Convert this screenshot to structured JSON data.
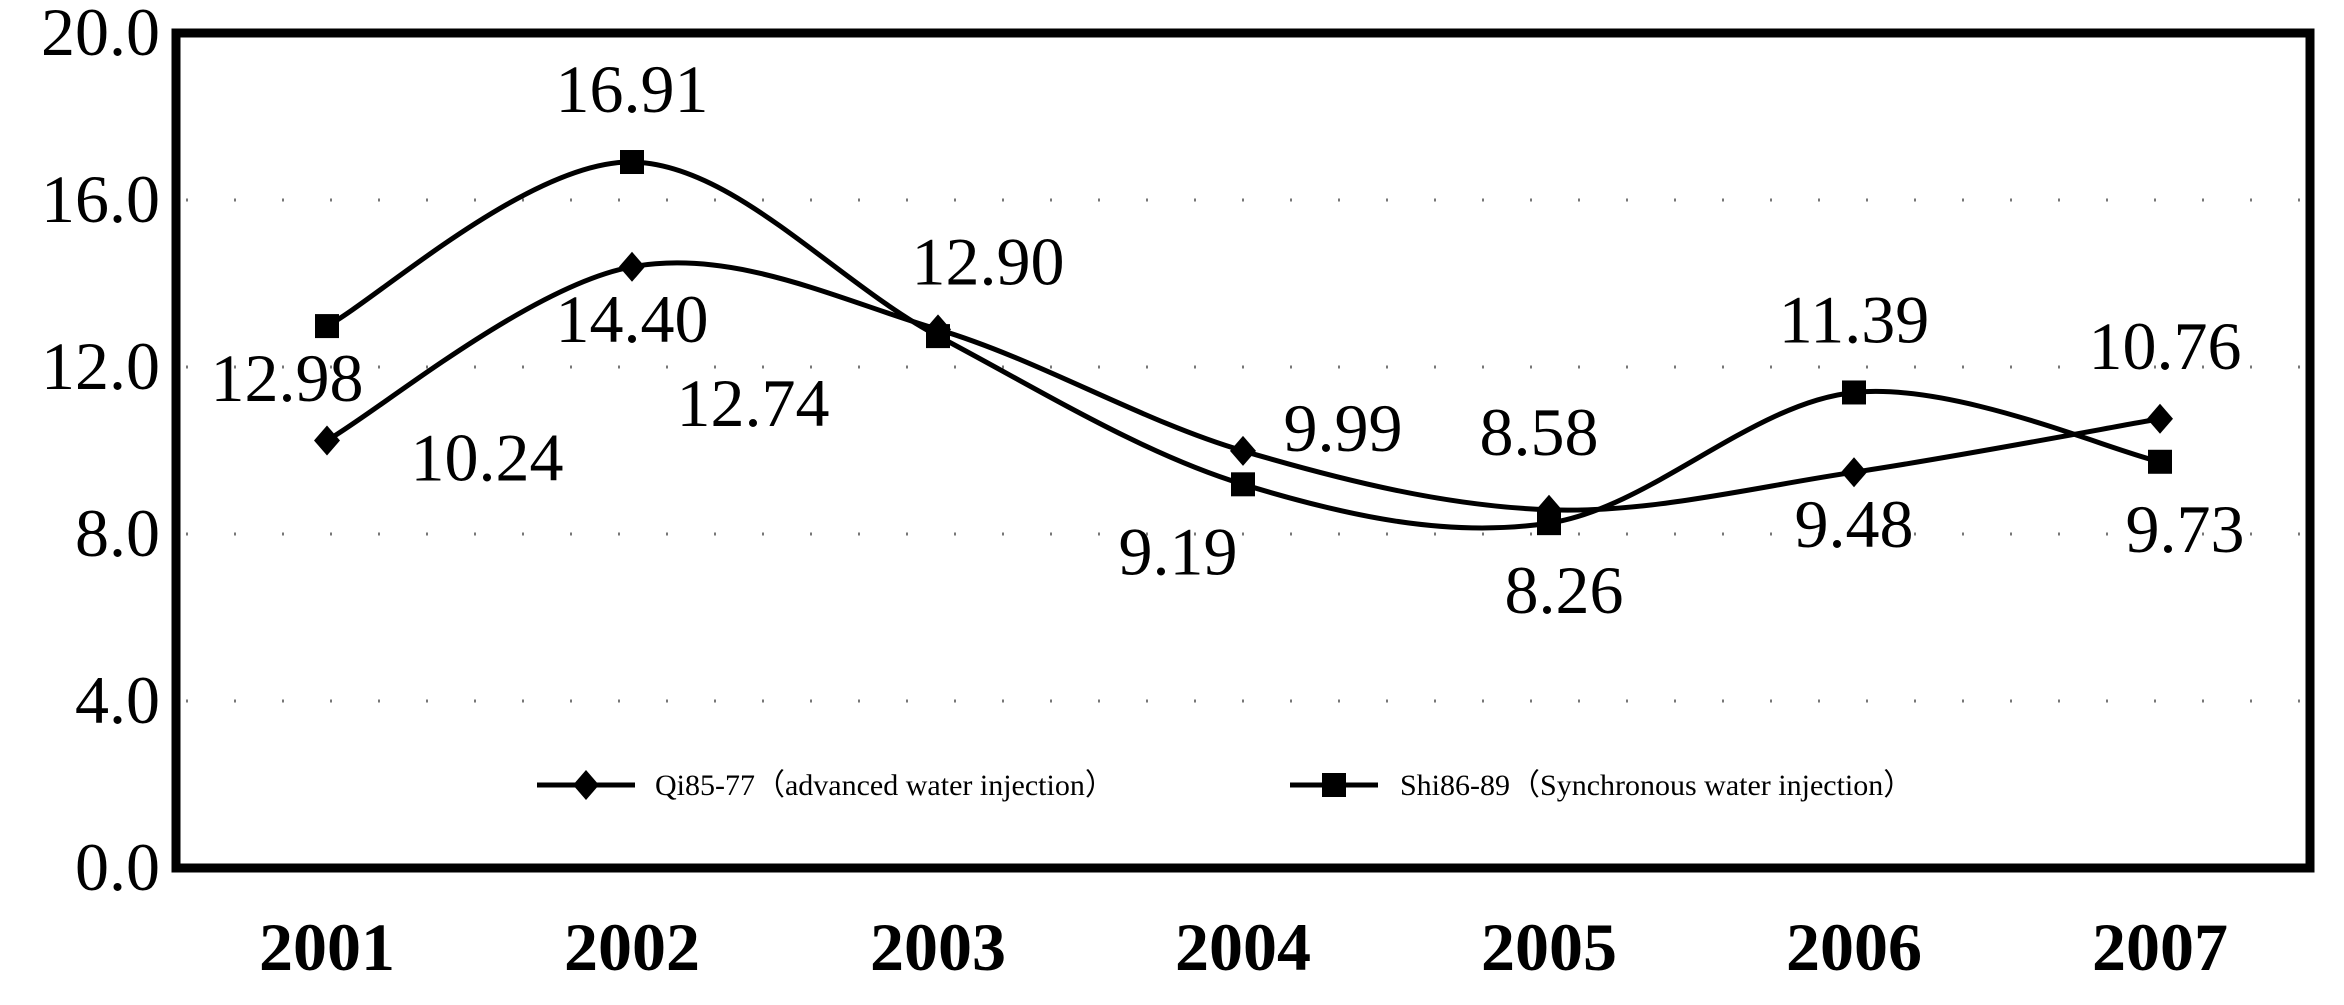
{
  "chart_data": {
    "type": "line",
    "title": "",
    "xlabel": "",
    "ylabel": "",
    "categories": [
      "2001",
      "2002",
      "2003",
      "2004",
      "2005",
      "2006",
      "2007"
    ],
    "ylim": [
      0,
      20
    ],
    "yticks": [
      "0.0",
      "4.0",
      "8.0",
      "12.0",
      "16.0",
      "20.0"
    ],
    "grid": "dotted",
    "legend_position": "bottom-center",
    "series": [
      {
        "name": "Qi85-77（advanced water injection）",
        "marker": "diamond",
        "values": [
          10.24,
          14.4,
          12.9,
          9.99,
          8.58,
          9.48,
          10.76
        ],
        "labels": [
          "10.24",
          "14.40",
          "12.90",
          "9.99",
          "8.58",
          "9.48",
          "10.76"
        ]
      },
      {
        "name": "Shi86-89（Synchronous water injection）",
        "marker": "square",
        "values": [
          12.98,
          16.91,
          12.74,
          9.19,
          8.26,
          11.39,
          9.73
        ],
        "labels": [
          "12.98",
          "16.91",
          "12.74",
          "9.19",
          "8.26",
          "11.39",
          "9.73"
        ]
      }
    ]
  }
}
